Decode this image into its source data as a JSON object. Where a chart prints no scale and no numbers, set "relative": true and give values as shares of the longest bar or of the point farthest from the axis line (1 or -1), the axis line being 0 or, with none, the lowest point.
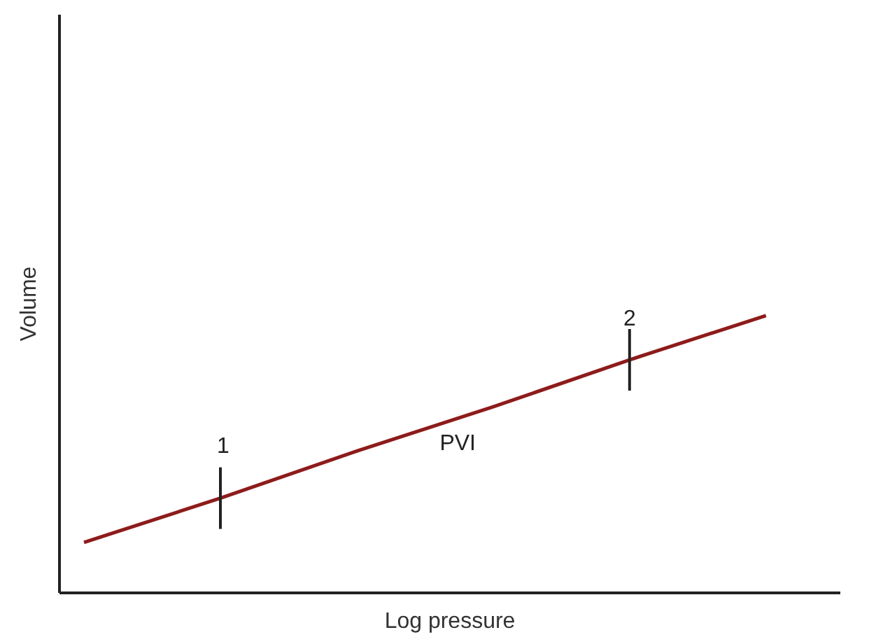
{
  "chart_data": {
    "type": "line",
    "xlabel": "Log pressure",
    "ylabel": "Volume",
    "relative": true,
    "categories": [
      null,
      null,
      null,
      null,
      null,
      null
    ],
    "series": [
      {
        "color": "#8e1b1b",
        "values": [
          0.18,
          0.34,
          0.51,
          0.67,
          0.84,
          1.0
        ]
      }
    ],
    "annotations": [
      "1",
      "2",
      "PVI"
    ]
  }
}
